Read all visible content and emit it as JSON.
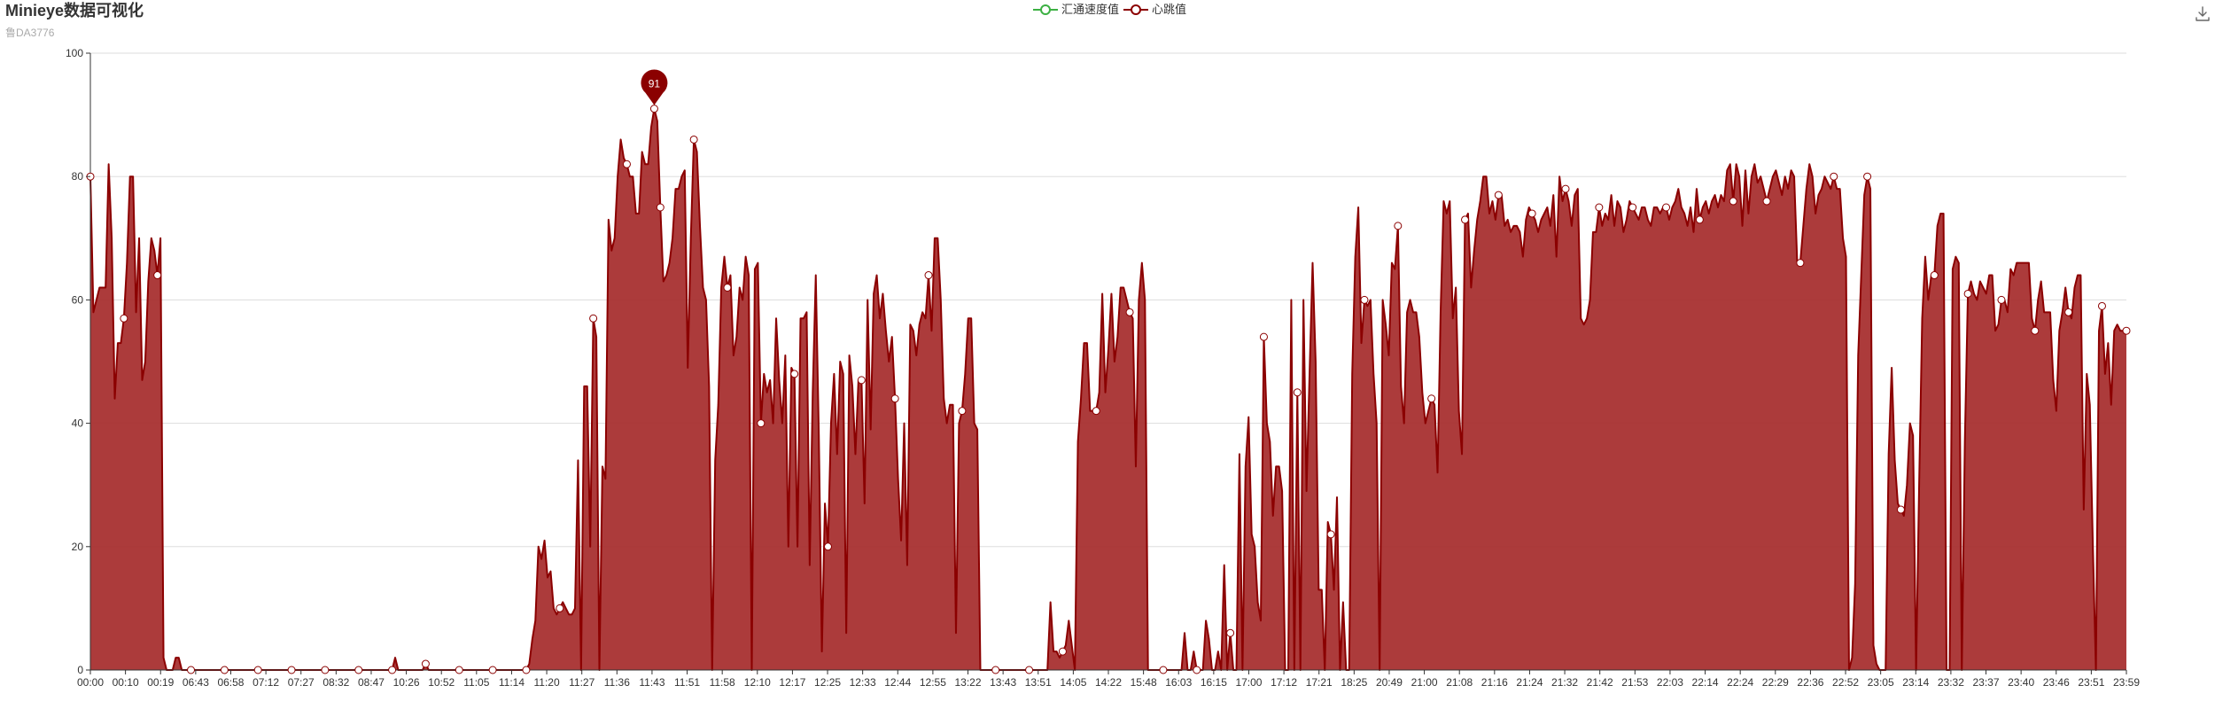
{
  "title": "Minieye数据可视化",
  "subtitle": "鲁DA3776",
  "toolbox": {
    "save_icon": "download-icon"
  },
  "colors": {
    "heart_line": "#8b0000",
    "heart_fill": "#a52a2a",
    "speed_line": "#3cb043",
    "grid": "#dddddd",
    "axis": "#333333",
    "pin": "#8b0000"
  },
  "chart_data": {
    "type": "area",
    "title": "Minieye数据可视化",
    "subtitle": "鲁DA3776",
    "legend": [
      "汇通速度值",
      "心跳值"
    ],
    "legend_position": "top-center",
    "grid": true,
    "xlabel": "",
    "ylabel": "",
    "ylim": [
      0,
      100
    ],
    "y_ticks": [
      0,
      20,
      40,
      60,
      80,
      100
    ],
    "x_tick_labels": [
      "00:00",
      "00:10",
      "00:19",
      "06:43",
      "06:58",
      "07:12",
      "07:27",
      "08:32",
      "08:47",
      "10:26",
      "10:52",
      "11:05",
      "11:14",
      "11:20",
      "11:27",
      "11:36",
      "11:43",
      "11:51",
      "11:58",
      "12:10",
      "12:17",
      "12:25",
      "12:33",
      "12:44",
      "12:55",
      "13:22",
      "13:43",
      "13:51",
      "14:05",
      "14:22",
      "15:48",
      "16:03",
      "16:15",
      "17:00",
      "17:12",
      "17:21",
      "18:25",
      "20:49",
      "21:00",
      "21:08",
      "21:16",
      "21:24",
      "21:32",
      "21:42",
      "21:53",
      "22:03",
      "22:14",
      "22:24",
      "22:29",
      "22:36",
      "22:52",
      "23:05",
      "23:14",
      "23:32",
      "23:37",
      "23:40",
      "23:46",
      "23:51",
      "23:59"
    ],
    "series": [
      {
        "name": "汇通速度值",
        "values": []
      },
      {
        "name": "心跳值",
        "values": [
          80,
          58,
          60,
          62,
          62,
          62,
          82,
          70,
          44,
          53,
          53,
          57,
          66,
          80,
          80,
          58,
          70,
          47,
          50,
          63,
          70,
          68,
          64,
          70,
          2,
          0,
          0,
          0,
          2,
          2,
          0,
          0,
          0,
          0,
          0,
          0,
          0,
          0,
          0,
          0,
          0,
          0,
          0,
          0,
          0,
          0,
          0,
          0,
          0,
          0,
          0,
          0,
          0,
          0,
          0,
          0,
          0,
          0,
          0,
          0,
          0,
          0,
          0,
          0,
          0,
          0,
          0,
          0,
          0,
          0,
          0,
          0,
          0,
          0,
          0,
          0,
          0,
          0,
          0,
          0,
          0,
          0,
          0,
          0,
          0,
          0,
          0,
          0,
          0,
          0,
          0,
          0,
          0,
          0,
          0,
          0,
          0,
          0,
          0,
          0,
          2,
          0,
          0,
          0,
          0,
          0,
          0,
          0,
          0,
          0,
          1,
          0,
          0,
          0,
          0,
          0,
          0,
          0,
          0,
          0,
          0,
          0,
          0,
          0,
          0,
          0,
          0,
          0,
          0,
          0,
          0,
          0,
          0,
          0,
          0,
          0,
          0,
          0,
          0,
          0,
          0,
          0,
          0,
          0,
          1,
          5,
          8,
          20,
          18,
          21,
          15,
          16,
          10,
          9,
          10,
          11,
          10,
          9,
          9,
          10,
          34,
          0,
          46,
          46,
          20,
          57,
          54,
          0,
          33,
          31,
          73,
          68,
          70,
          80,
          86,
          83,
          82,
          80,
          80,
          74,
          74,
          84,
          82,
          82,
          88,
          91,
          89,
          75,
          63,
          64,
          66,
          70,
          78,
          78,
          80,
          81,
          49,
          70,
          86,
          84,
          72,
          62,
          60,
          46,
          0,
          34,
          43,
          62,
          67,
          62,
          64,
          51,
          54,
          62,
          60,
          67,
          64,
          0,
          65,
          66,
          40,
          48,
          45,
          47,
          40,
          57,
          47,
          40,
          51,
          20,
          49,
          48,
          20,
          57,
          57,
          58,
          17,
          45,
          64,
          38,
          3,
          27,
          20,
          40,
          48,
          35,
          50,
          48,
          6,
          51,
          46,
          35,
          47,
          47,
          27,
          60,
          39,
          61,
          64,
          57,
          61,
          55,
          50,
          54,
          44,
          31,
          21,
          40,
          17,
          56,
          55,
          51,
          56,
          58,
          57,
          64,
          55,
          70,
          70,
          60,
          44,
          40,
          43,
          43,
          6,
          40,
          42,
          48,
          57,
          57,
          40,
          39,
          0,
          0,
          0,
          0,
          0,
          0,
          0,
          0,
          0,
          0,
          0,
          0,
          0,
          0,
          0,
          0,
          0,
          0,
          0,
          0,
          0,
          0,
          0,
          11,
          3,
          3,
          2,
          3,
          4,
          8,
          4,
          0,
          37,
          44,
          53,
          53,
          42,
          42,
          42,
          45,
          61,
          45,
          52,
          61,
          50,
          54,
          62,
          62,
          60,
          58,
          57,
          33,
          60,
          66,
          60,
          0,
          0,
          0,
          0,
          0,
          0,
          0,
          0,
          0,
          0,
          0,
          0,
          6,
          0,
          0,
          3,
          0,
          0,
          0,
          8,
          5,
          0,
          0,
          3,
          0,
          17,
          0,
          6,
          0,
          0,
          35,
          0,
          33,
          41,
          22,
          20,
          11,
          8,
          54,
          40,
          37,
          25,
          33,
          33,
          29,
          0,
          0,
          60,
          0,
          45,
          0,
          60,
          29,
          48,
          66,
          50,
          13,
          13,
          0,
          24,
          22,
          13,
          28,
          0,
          11,
          0,
          0,
          48,
          67,
          75,
          53,
          60,
          59,
          60,
          48,
          40,
          0,
          60,
          56,
          51,
          66,
          65,
          72,
          46,
          40,
          58,
          60,
          58,
          58,
          54,
          45,
          40,
          42,
          44,
          43,
          32,
          58,
          76,
          74,
          76,
          57,
          62,
          42,
          35,
          73,
          74,
          62,
          68,
          73,
          76,
          80,
          80,
          74,
          76,
          73,
          77,
          77,
          72,
          73,
          71,
          72,
          72,
          71,
          67,
          73,
          75,
          74,
          73,
          71,
          73,
          74,
          75,
          72,
          77,
          67,
          80,
          76,
          78,
          76,
          72,
          77,
          78,
          57,
          56,
          57,
          60,
          71,
          71,
          75,
          72,
          74,
          73,
          77,
          72,
          76,
          75,
          71,
          73,
          76,
          75,
          74,
          73,
          75,
          75,
          73,
          72,
          75,
          75,
          74,
          75,
          75,
          73,
          75,
          76,
          78,
          75,
          74,
          72,
          75,
          71,
          78,
          73,
          75,
          76,
          74,
          76,
          77,
          75,
          77,
          76,
          81,
          82,
          76,
          82,
          80,
          72,
          81,
          74,
          80,
          82,
          79,
          80,
          78,
          76,
          78,
          80,
          81,
          79,
          77,
          80,
          78,
          81,
          80,
          66,
          66,
          72,
          78,
          82,
          80,
          74,
          77,
          78,
          80,
          79,
          78,
          80,
          78,
          78,
          70,
          67,
          0,
          2,
          14,
          51,
          64,
          77,
          80,
          78,
          4,
          1,
          0,
          0,
          0,
          35,
          49,
          34,
          27,
          26,
          25,
          30,
          40,
          38,
          0,
          30,
          57,
          67,
          60,
          64,
          64,
          72,
          74,
          74,
          0,
          0,
          65,
          67,
          66,
          0,
          37,
          61,
          63,
          61,
          60,
          63,
          62,
          61,
          64,
          64,
          55,
          56,
          60,
          60,
          58,
          65,
          64,
          66,
          66,
          66,
          66,
          66,
          57,
          55,
          60,
          63,
          58,
          58,
          58,
          47,
          42,
          55,
          58,
          62,
          58,
          57,
          62,
          64,
          64,
          26,
          48,
          43,
          20,
          0,
          55,
          59,
          48,
          53,
          43,
          55,
          56,
          55,
          55,
          55
        ]
      }
    ],
    "markers": [
      {
        "series": "心跳值",
        "type": "max",
        "label": "91"
      }
    ]
  }
}
